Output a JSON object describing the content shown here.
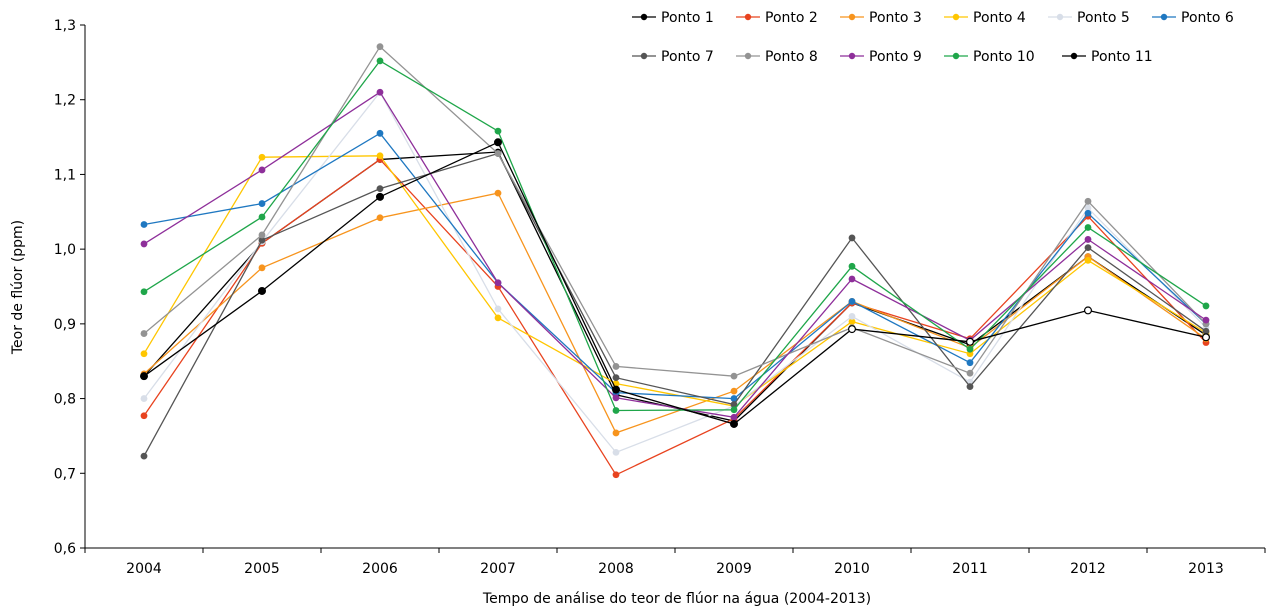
{
  "chart_data": {
    "type": "line",
    "xlabel": "Tempo de análise do teor de flúor na água (2004-2013)",
    "ylabel": "Teor de flúor (ppm)",
    "ylim": [
      0.6,
      1.3
    ],
    "y_ticks": [
      "0,6",
      "0,7",
      "0,8",
      "0,9",
      "1,0",
      "1,1",
      "1,2",
      "1,3"
    ],
    "y_tick_values": [
      0.6,
      0.7,
      0.8,
      0.9,
      1.0,
      1.1,
      1.2,
      1.3
    ],
    "categories": [
      "2004",
      "2005",
      "2006",
      "2007",
      "2008",
      "2009",
      "2010",
      "2011",
      "2012",
      "2013"
    ],
    "grid": false,
    "legend_position": "top-right",
    "series": [
      {
        "name": "Ponto 1",
        "color": "#000000",
        "values": [
          0.83,
          1.008,
          1.12,
          1.13,
          0.805,
          0.77,
          0.928,
          0.872,
          0.99,
          0.885
        ]
      },
      {
        "name": "Ponto 2",
        "color": "#E8431F",
        "values": [
          0.777,
          1.008,
          1.12,
          0.95,
          0.698,
          0.773,
          0.928,
          0.88,
          1.044,
          0.875
        ]
      },
      {
        "name": "Ponto 3",
        "color": "#F7941D",
        "values": [
          0.833,
          0.975,
          1.042,
          1.075,
          0.754,
          0.81,
          0.93,
          0.868,
          0.99,
          0.88
        ]
      },
      {
        "name": "Ponto 4",
        "color": "#FFC600",
        "values": [
          0.86,
          1.123,
          1.125,
          0.908,
          0.82,
          0.79,
          0.903,
          0.86,
          0.985,
          0.888
        ]
      },
      {
        "name": "Ponto 5",
        "color": "#D8DEE8",
        "values": [
          0.8,
          1.01,
          1.21,
          0.92,
          0.728,
          0.79,
          0.91,
          0.822,
          1.055,
          0.895
        ]
      },
      {
        "name": "Ponto 6",
        "color": "#1F78C1",
        "values": [
          1.033,
          1.061,
          1.155,
          0.955,
          0.808,
          0.8,
          0.93,
          0.848,
          1.048,
          0.9
        ]
      },
      {
        "name": "Ponto 7",
        "color": "#555555",
        "values": [
          0.723,
          1.012,
          1.081,
          1.128,
          0.828,
          0.792,
          1.015,
          0.816,
          1.002,
          0.89
        ]
      },
      {
        "name": "Ponto 8",
        "color": "#939393",
        "values": [
          0.887,
          1.019,
          1.271,
          1.128,
          0.843,
          0.83,
          0.895,
          0.834,
          1.064,
          0.9
        ]
      },
      {
        "name": "Ponto 9",
        "color": "#8E2F9A",
        "values": [
          1.007,
          1.106,
          1.21,
          0.955,
          0.801,
          0.775,
          0.96,
          0.878,
          1.013,
          0.905
        ]
      },
      {
        "name": "Ponto 10",
        "color": "#1FA64A",
        "values": [
          0.943,
          1.043,
          1.252,
          1.158,
          0.784,
          0.785,
          0.977,
          0.866,
          1.029,
          0.924
        ]
      },
      {
        "name": "Ponto 11",
        "color": "#000000",
        "hollow": true,
        "values": [
          0.83,
          0.944,
          1.07,
          1.143,
          0.812,
          0.766,
          0.893,
          0.876,
          0.918,
          0.882
        ]
      }
    ]
  }
}
